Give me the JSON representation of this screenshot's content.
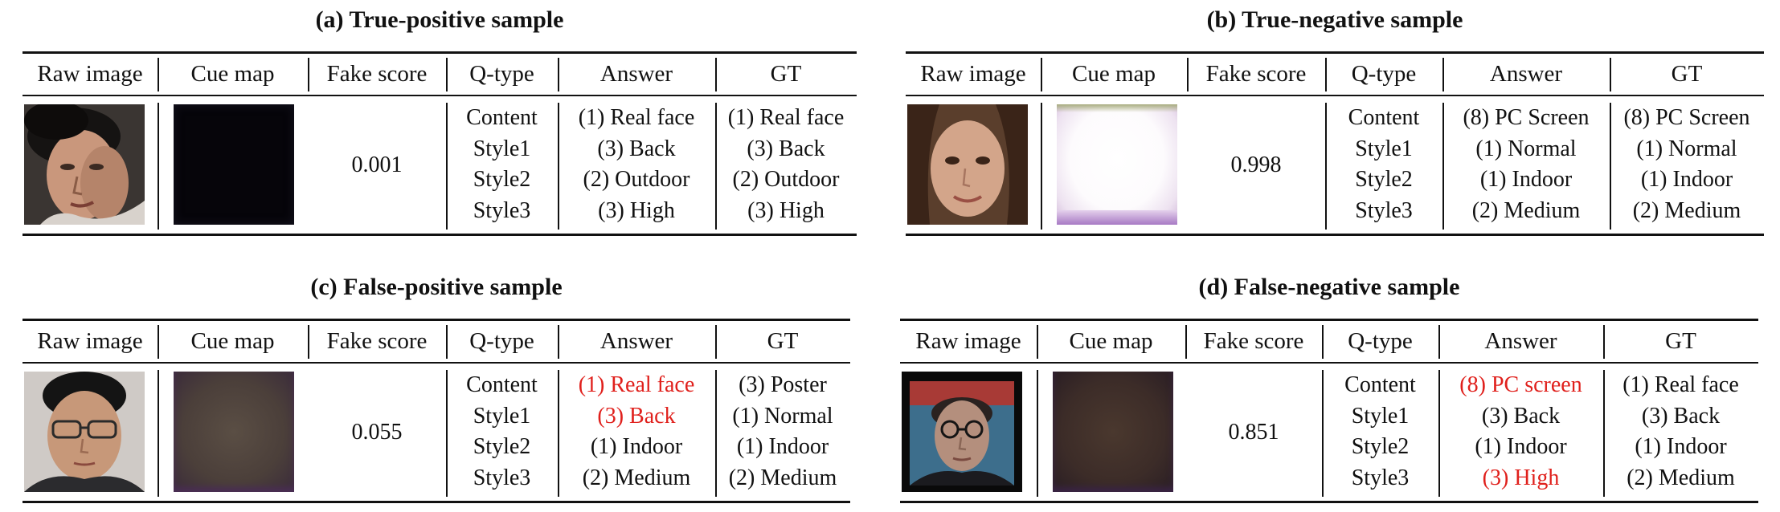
{
  "headers": [
    "Raw image",
    "Cue map",
    "Fake score",
    "Q-type",
    "Answer",
    "GT"
  ],
  "panels": [
    {
      "caption": "(a) True-positive sample",
      "score": "0.001",
      "qtypes": [
        "Content",
        "Style1",
        "Style2",
        "Style3"
      ],
      "answers": [
        "(1) Real face",
        "(3) Back",
        "(2) Outdoor",
        "(3) High"
      ],
      "answer_wrong": [
        false,
        false,
        false,
        false
      ],
      "gt": [
        "(1) Real face",
        "(3) Back",
        "(2) Outdoor",
        "(3) High"
      ]
    },
    {
      "caption": "(b) True-negative sample",
      "score": "0.998",
      "qtypes": [
        "Content",
        "Style1",
        "Style2",
        "Style3"
      ],
      "answers": [
        "(8) PC Screen",
        "(1) Normal",
        "(1) Indoor",
        "(2) Medium"
      ],
      "answer_wrong": [
        false,
        false,
        false,
        false
      ],
      "gt": [
        "(8) PC Screen",
        "(1) Normal",
        "(1) Indoor",
        "(2) Medium"
      ]
    },
    {
      "caption": "(c) False-positive sample",
      "score": "0.055",
      "qtypes": [
        "Content",
        "Style1",
        "Style2",
        "Style3"
      ],
      "answers": [
        "(1) Real face",
        "(3) Back",
        "(1) Indoor",
        "(2) Medium"
      ],
      "answer_wrong": [
        true,
        true,
        false,
        false
      ],
      "gt": [
        "(3) Poster",
        "(1) Normal",
        "(1) Indoor",
        "(2) Medium"
      ]
    },
    {
      "caption": "(d) False-negative sample",
      "score": "0.851",
      "qtypes": [
        "Content",
        "Style1",
        "Style2",
        "Style3"
      ],
      "answers": [
        "(8) PC screen",
        "(3) Back",
        "(1) Indoor",
        "(3) High"
      ],
      "answer_wrong": [
        true,
        false,
        false,
        true
      ],
      "gt": [
        "(1) Real face",
        "(3) Back",
        "(1) Indoor",
        "(2) Medium"
      ]
    }
  ],
  "colors": {
    "wrong_answer": "#e0201c",
    "rules": "#111111"
  }
}
